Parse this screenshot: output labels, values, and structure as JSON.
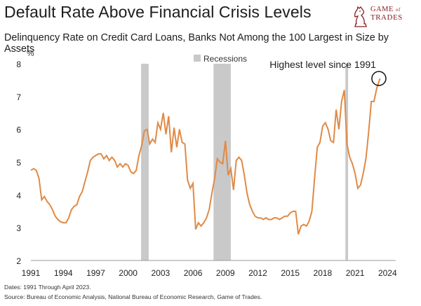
{
  "header": {
    "title": "Default Rate Above Financial Crisis Levels",
    "subtitle": "Delinquency Rate on Credit Card Loans, Banks Not Among the 100 Largest in Size by Assets"
  },
  "logo": {
    "line1": "GAME",
    "line2": "of",
    "line3": "TRADES"
  },
  "footer": {
    "note": "Dates: 1991 Through April 2023.",
    "source": "Source: Bureau of Economic Analysis, National Bureau of Economic Research, Game of Trades."
  },
  "chart_data": {
    "type": "line",
    "ylabel": "%",
    "ylim": [
      2,
      8
    ],
    "xlim": [
      1991,
      2024.5
    ],
    "y_ticks": [
      "2",
      "3",
      "4",
      "5",
      "6",
      "7",
      "8"
    ],
    "x_ticks": [
      "1991",
      "1994",
      "1997",
      "2000",
      "2003",
      "2006",
      "2009",
      "2012",
      "2015",
      "2018",
      "2021",
      "2024"
    ],
    "legend": {
      "label": "Recessions",
      "position": "top-center"
    },
    "annotation": {
      "text": "Highest level since 1991",
      "x": 2023.2,
      "y": 7.55
    },
    "recessions": [
      [
        2001.2,
        2001.9
      ],
      [
        2007.9,
        2009.5
      ],
      [
        2020.1,
        2020.35
      ]
    ],
    "colors": {
      "line": "#e08a45",
      "recession": "#c9c9c9",
      "axis": "#9a9a9a"
    },
    "series": [
      {
        "points": [
          [
            1991.0,
            4.75
          ],
          [
            1991.25,
            4.8
          ],
          [
            1991.5,
            4.75
          ],
          [
            1991.75,
            4.5
          ],
          [
            1992.0,
            3.85
          ],
          [
            1992.25,
            3.95
          ],
          [
            1992.5,
            3.8
          ],
          [
            1992.75,
            3.7
          ],
          [
            1993.0,
            3.55
          ],
          [
            1993.25,
            3.35
          ],
          [
            1993.5,
            3.25
          ],
          [
            1993.75,
            3.18
          ],
          [
            1994.0,
            3.15
          ],
          [
            1994.25,
            3.15
          ],
          [
            1994.5,
            3.3
          ],
          [
            1994.75,
            3.55
          ],
          [
            1995.0,
            3.65
          ],
          [
            1995.25,
            3.7
          ],
          [
            1995.5,
            3.95
          ],
          [
            1995.75,
            4.1
          ],
          [
            1996.0,
            4.4
          ],
          [
            1996.25,
            4.7
          ],
          [
            1996.5,
            5.05
          ],
          [
            1996.75,
            5.15
          ],
          [
            1997.0,
            5.2
          ],
          [
            1997.25,
            5.25
          ],
          [
            1997.5,
            5.25
          ],
          [
            1997.75,
            5.1
          ],
          [
            1998.0,
            5.2
          ],
          [
            1998.25,
            5.05
          ],
          [
            1998.5,
            5.15
          ],
          [
            1998.75,
            5.05
          ],
          [
            1999.0,
            4.85
          ],
          [
            1999.25,
            4.95
          ],
          [
            1999.5,
            4.85
          ],
          [
            1999.75,
            4.95
          ],
          [
            2000.0,
            4.9
          ],
          [
            2000.25,
            4.7
          ],
          [
            2000.5,
            4.65
          ],
          [
            2000.75,
            4.75
          ],
          [
            2001.0,
            5.2
          ],
          [
            2001.25,
            5.5
          ],
          [
            2001.5,
            5.95
          ],
          [
            2001.75,
            6.0
          ],
          [
            2002.0,
            5.55
          ],
          [
            2002.25,
            5.7
          ],
          [
            2002.5,
            5.6
          ],
          [
            2002.75,
            6.2
          ],
          [
            2003.0,
            6.0
          ],
          [
            2003.25,
            6.5
          ],
          [
            2003.5,
            5.85
          ],
          [
            2003.75,
            6.4
          ],
          [
            2004.0,
            5.3
          ],
          [
            2004.25,
            6.05
          ],
          [
            2004.5,
            5.45
          ],
          [
            2004.75,
            6.0
          ],
          [
            2005.0,
            5.6
          ],
          [
            2005.25,
            5.55
          ],
          [
            2005.5,
            4.45
          ],
          [
            2005.75,
            4.2
          ],
          [
            2006.0,
            4.35
          ],
          [
            2006.25,
            2.95
          ],
          [
            2006.5,
            3.15
          ],
          [
            2006.75,
            3.05
          ],
          [
            2007.0,
            3.15
          ],
          [
            2007.25,
            3.3
          ],
          [
            2007.5,
            3.55
          ],
          [
            2007.75,
            4.05
          ],
          [
            2008.0,
            4.5
          ],
          [
            2008.25,
            5.1
          ],
          [
            2008.5,
            5.0
          ],
          [
            2008.75,
            4.95
          ],
          [
            2009.0,
            5.65
          ],
          [
            2009.25,
            4.6
          ],
          [
            2009.5,
            4.8
          ],
          [
            2009.75,
            4.15
          ],
          [
            2010.0,
            5.05
          ],
          [
            2010.25,
            5.15
          ],
          [
            2010.5,
            5.05
          ],
          [
            2010.75,
            4.6
          ],
          [
            2011.0,
            4.05
          ],
          [
            2011.25,
            3.7
          ],
          [
            2011.5,
            3.5
          ],
          [
            2011.75,
            3.35
          ],
          [
            2012.0,
            3.3
          ],
          [
            2012.25,
            3.3
          ],
          [
            2012.5,
            3.25
          ],
          [
            2012.75,
            3.3
          ],
          [
            2013.0,
            3.25
          ],
          [
            2013.25,
            3.25
          ],
          [
            2013.5,
            3.3
          ],
          [
            2013.75,
            3.3
          ],
          [
            2014.0,
            3.25
          ],
          [
            2014.25,
            3.3
          ],
          [
            2014.5,
            3.35
          ],
          [
            2014.75,
            3.35
          ],
          [
            2015.0,
            3.45
          ],
          [
            2015.25,
            3.5
          ],
          [
            2015.5,
            3.5
          ],
          [
            2015.75,
            2.8
          ],
          [
            2016.0,
            3.05
          ],
          [
            2016.25,
            3.1
          ],
          [
            2016.5,
            3.05
          ],
          [
            2016.75,
            3.2
          ],
          [
            2017.0,
            3.5
          ],
          [
            2017.25,
            4.5
          ],
          [
            2017.5,
            5.45
          ],
          [
            2017.75,
            5.6
          ],
          [
            2018.0,
            6.1
          ],
          [
            2018.25,
            6.2
          ],
          [
            2018.5,
            6.0
          ],
          [
            2018.75,
            5.65
          ],
          [
            2019.0,
            5.6
          ],
          [
            2019.25,
            6.6
          ],
          [
            2019.5,
            6.0
          ],
          [
            2019.75,
            6.85
          ],
          [
            2020.0,
            7.2
          ],
          [
            2020.25,
            5.55
          ],
          [
            2020.5,
            5.15
          ],
          [
            2020.75,
            4.95
          ],
          [
            2021.0,
            4.65
          ],
          [
            2021.25,
            4.2
          ],
          [
            2021.5,
            4.3
          ],
          [
            2021.75,
            4.65
          ],
          [
            2022.0,
            5.1
          ],
          [
            2022.25,
            5.9
          ],
          [
            2022.5,
            6.85
          ],
          [
            2022.75,
            6.85
          ],
          [
            2023.0,
            7.25
          ],
          [
            2023.3,
            7.55
          ]
        ]
      }
    ]
  }
}
